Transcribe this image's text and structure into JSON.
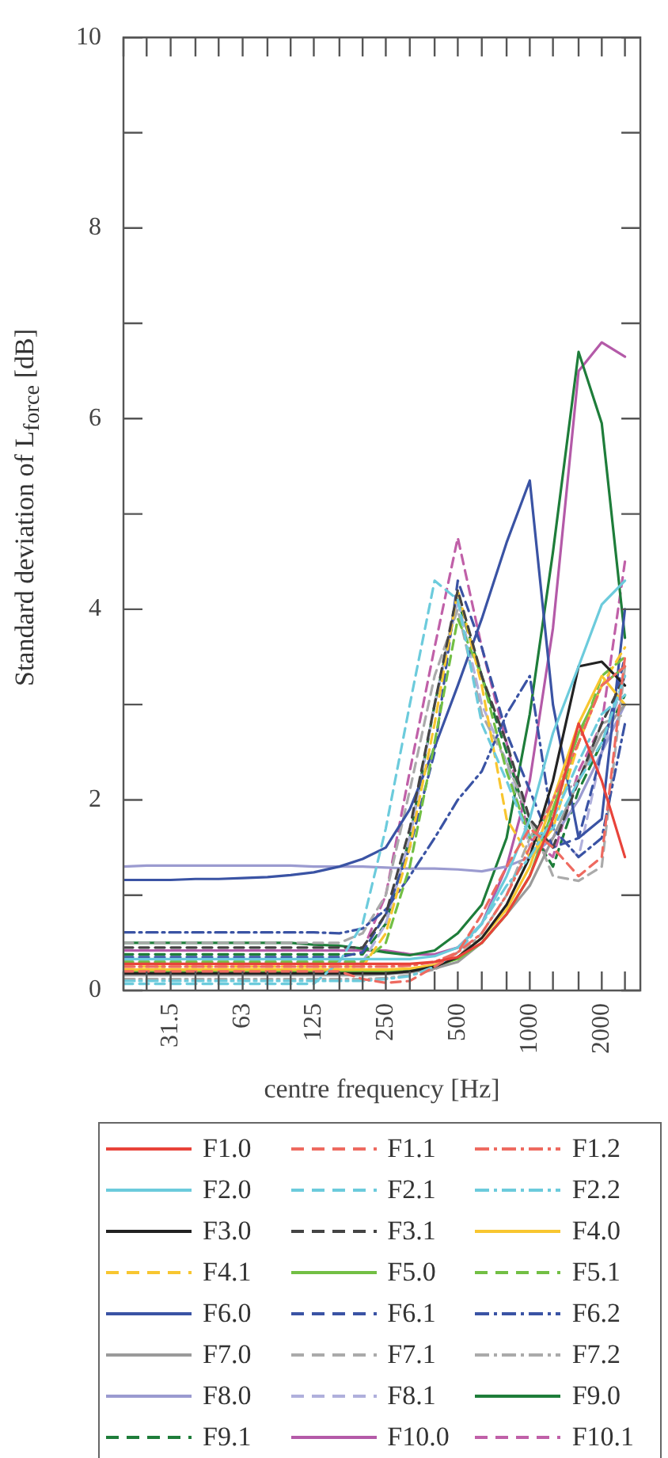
{
  "chart_data": {
    "type": "line",
    "xlabel": "centre frequency [Hz]",
    "ylabel": "Standard deviation of L$_{force}$ [dB]",
    "log": "x",
    "grid": false,
    "legend": "bottom",
    "marker": "none",
    "xlim": [
      20,
      2900
    ],
    "ylim": [
      0,
      10
    ],
    "xticks": [
      {
        "value": 20,
        "label": null
      },
      {
        "value": 25,
        "label": null
      },
      31.5,
      {
        "value": 40,
        "label": null
      },
      {
        "value": 50,
        "label": null
      },
      63,
      {
        "value": 80,
        "label": null
      },
      {
        "value": 100,
        "label": null
      },
      125,
      {
        "value": 160,
        "label": null
      },
      {
        "value": 200,
        "label": null
      },
      250,
      {
        "value": 315,
        "label": null
      },
      {
        "value": 400,
        "label": null
      },
      500,
      {
        "value": 630,
        "label": null
      },
      {
        "value": 800,
        "label": null
      },
      1000,
      {
        "value": 1250,
        "label": null
      },
      {
        "value": 1600,
        "label": null
      },
      2000,
      {
        "value": 2500,
        "label": null
      }
    ],
    "yticks": [
      0,
      {
        "value": 1,
        "label": null
      },
      2,
      {
        "value": 3,
        "label": null
      },
      4,
      {
        "value": 5,
        "label": null
      },
      6,
      {
        "value": 7,
        "label": null
      },
      8,
      {
        "value": 9,
        "label": null
      },
      10
    ],
    "x": [
      20,
      25,
      31.5,
      40,
      50,
      63,
      80,
      100,
      125,
      160,
      200,
      250,
      315,
      400,
      500,
      630,
      800,
      1000,
      1250,
      1600,
      2000,
      2500
    ],
    "series": [
      {
        "name": "F1.0",
        "color": "#e8433a",
        "line_style": "solid",
        "values": [
          0.28,
          0.28,
          0.28,
          0.28,
          0.28,
          0.28,
          0.28,
          0.28,
          0.28,
          0.28,
          0.28,
          0.28,
          0.28,
          0.3,
          0.35,
          0.5,
          0.8,
          1.2,
          1.8,
          2.8,
          2.2,
          1.4
        ]
      },
      {
        "name": "F1.1",
        "color": "#ee6a60",
        "line_style": "dashed",
        "values": [
          0.2,
          0.2,
          0.2,
          0.2,
          0.2,
          0.2,
          0.2,
          0.2,
          0.2,
          0.2,
          0.12,
          0.08,
          0.1,
          0.25,
          0.4,
          0.8,
          1.3,
          1.7,
          1.5,
          1.2,
          1.4,
          3.5
        ]
      },
      {
        "name": "F1.2",
        "color": "#ee6a60",
        "line_style": "dashdot",
        "values": [
          0.25,
          0.25,
          0.25,
          0.25,
          0.25,
          0.25,
          0.25,
          0.25,
          0.25,
          0.25,
          0.25,
          0.25,
          0.26,
          0.3,
          0.4,
          0.6,
          1.0,
          1.5,
          2.0,
          2.6,
          3.2,
          3.4
        ]
      },
      {
        "name": "F2.0",
        "color": "#6ccbdc",
        "line_style": "solid",
        "values": [
          0.33,
          0.33,
          0.33,
          0.33,
          0.33,
          0.33,
          0.33,
          0.33,
          0.33,
          0.33,
          0.33,
          0.33,
          0.33,
          0.36,
          0.45,
          0.7,
          1.2,
          1.8,
          2.7,
          3.4,
          4.05,
          4.3
        ]
      },
      {
        "name": "F2.1",
        "color": "#6ccbdc",
        "line_style": "dashed",
        "values": [
          0.07,
          0.07,
          0.07,
          0.07,
          0.07,
          0.07,
          0.07,
          0.07,
          0.07,
          0.3,
          0.7,
          1.7,
          3.0,
          4.3,
          4.1,
          2.8,
          2.2,
          1.6,
          1.7,
          2.2,
          2.6,
          3.3
        ]
      },
      {
        "name": "F2.2",
        "color": "#6ccbdc",
        "line_style": "dashdot",
        "values": [
          0.1,
          0.1,
          0.1,
          0.1,
          0.1,
          0.1,
          0.1,
          0.1,
          0.1,
          0.1,
          0.1,
          0.12,
          0.15,
          0.25,
          0.4,
          0.7,
          1.1,
          1.4,
          1.8,
          2.4,
          2.9,
          3.1
        ]
      },
      {
        "name": "F3.0",
        "color": "#222222",
        "line_style": "solid",
        "values": [
          0.18,
          0.18,
          0.18,
          0.18,
          0.18,
          0.18,
          0.18,
          0.18,
          0.18,
          0.18,
          0.18,
          0.18,
          0.2,
          0.25,
          0.35,
          0.55,
          0.9,
          1.4,
          2.2,
          3.4,
          3.45,
          3.2
        ]
      },
      {
        "name": "F3.1",
        "color": "#444444",
        "line_style": "dashed",
        "values": [
          0.45,
          0.45,
          0.45,
          0.45,
          0.45,
          0.45,
          0.45,
          0.45,
          0.45,
          0.45,
          0.45,
          0.8,
          1.7,
          3.0,
          4.2,
          3.3,
          2.6,
          1.8,
          1.5,
          2.2,
          2.8,
          3.3
        ]
      },
      {
        "name": "F4.0",
        "color": "#f8c630",
        "line_style": "solid",
        "values": [
          0.22,
          0.22,
          0.22,
          0.22,
          0.22,
          0.22,
          0.22,
          0.22,
          0.22,
          0.22,
          0.22,
          0.22,
          0.23,
          0.27,
          0.35,
          0.55,
          0.85,
          1.3,
          2.0,
          2.8,
          3.3,
          3.0
        ]
      },
      {
        "name": "F4.1",
        "color": "#f8c630",
        "line_style": "dashed",
        "values": [
          0.25,
          0.25,
          0.25,
          0.25,
          0.25,
          0.25,
          0.25,
          0.25,
          0.25,
          0.25,
          0.25,
          0.6,
          1.5,
          2.8,
          4.2,
          3.2,
          1.8,
          1.4,
          1.7,
          2.6,
          3.2,
          3.6
        ]
      },
      {
        "name": "F5.0",
        "color": "#72bf44",
        "line_style": "solid",
        "values": [
          0.2,
          0.2,
          0.2,
          0.2,
          0.2,
          0.2,
          0.2,
          0.2,
          0.2,
          0.2,
          0.2,
          0.2,
          0.22,
          0.26,
          0.33,
          0.5,
          0.8,
          1.2,
          1.9,
          2.7,
          3.2,
          3.4
        ]
      },
      {
        "name": "F5.1",
        "color": "#72bf44",
        "line_style": "dashed",
        "values": [
          0.3,
          0.3,
          0.3,
          0.3,
          0.3,
          0.3,
          0.3,
          0.3,
          0.3,
          0.3,
          0.3,
          0.5,
          1.3,
          2.6,
          3.9,
          3.3,
          2.3,
          1.6,
          1.9,
          2.6,
          3.3,
          3.5
        ]
      },
      {
        "name": "F6.0",
        "color": "#3a53a4",
        "line_style": "solid",
        "values": [
          1.16,
          1.16,
          1.16,
          1.17,
          1.17,
          1.18,
          1.19,
          1.21,
          1.24,
          1.3,
          1.38,
          1.5,
          1.9,
          2.55,
          3.2,
          3.9,
          4.7,
          5.35,
          3.0,
          1.6,
          1.8,
          4.0
        ]
      },
      {
        "name": "F6.1",
        "color": "#3a53a4",
        "line_style": "dashed",
        "values": [
          0.35,
          0.35,
          0.35,
          0.35,
          0.35,
          0.35,
          0.35,
          0.35,
          0.35,
          0.35,
          0.4,
          0.8,
          1.5,
          2.5,
          4.3,
          3.6,
          2.7,
          2.1,
          1.5,
          1.6,
          2.5,
          3.5
        ]
      },
      {
        "name": "F6.2",
        "color": "#3a53a4",
        "line_style": "dashdot",
        "values": [
          0.61,
          0.61,
          0.61,
          0.61,
          0.61,
          0.61,
          0.61,
          0.61,
          0.61,
          0.6,
          0.65,
          0.85,
          1.2,
          1.6,
          2.0,
          2.3,
          2.9,
          3.3,
          1.7,
          1.4,
          1.6,
          2.8
        ]
      },
      {
        "name": "F7.0",
        "color": "#9a9a9a",
        "line_style": "solid",
        "values": [
          0.16,
          0.16,
          0.16,
          0.16,
          0.16,
          0.16,
          0.16,
          0.16,
          0.16,
          0.16,
          0.16,
          0.17,
          0.19,
          0.23,
          0.3,
          0.5,
          0.8,
          1.1,
          1.6,
          2.2,
          2.7,
          3.0
        ]
      },
      {
        "name": "F7.1",
        "color": "#aaaaaa",
        "line_style": "dashed",
        "values": [
          0.5,
          0.5,
          0.5,
          0.5,
          0.5,
          0.5,
          0.5,
          0.5,
          0.5,
          0.5,
          0.6,
          1.0,
          2.1,
          3.3,
          4.0,
          2.9,
          2.4,
          1.8,
          1.2,
          1.15,
          1.3,
          3.4
        ]
      },
      {
        "name": "F7.2",
        "color": "#aaaaaa",
        "line_style": "dashdot",
        "values": [
          0.12,
          0.12,
          0.12,
          0.12,
          0.12,
          0.12,
          0.12,
          0.12,
          0.12,
          0.12,
          0.12,
          0.13,
          0.16,
          0.22,
          0.35,
          0.6,
          1.0,
          1.6,
          2.0,
          2.2,
          2.8,
          2.9
        ]
      },
      {
        "name": "F8.0",
        "color": "#9b9bd0",
        "line_style": "solid",
        "values": [
          1.3,
          1.31,
          1.31,
          1.31,
          1.31,
          1.31,
          1.31,
          1.31,
          1.3,
          1.3,
          1.3,
          1.29,
          1.28,
          1.28,
          1.27,
          1.25,
          1.3,
          1.4,
          1.6,
          2.0,
          2.5,
          3.0
        ]
      },
      {
        "name": "F8.1",
        "color": "#b0b0dc",
        "line_style": "dashed",
        "values": [
          0.3,
          0.3,
          0.3,
          0.3,
          0.3,
          0.3,
          0.3,
          0.3,
          0.3,
          0.3,
          0.3,
          0.7,
          1.6,
          3.0,
          4.1,
          3.0,
          2.4,
          1.5,
          1.7,
          1.4,
          2.5,
          3.3
        ]
      },
      {
        "name": "F9.0",
        "color": "#1e7d3a",
        "line_style": "solid",
        "values": [
          0.5,
          0.5,
          0.5,
          0.5,
          0.5,
          0.5,
          0.5,
          0.5,
          0.48,
          0.47,
          0.44,
          0.4,
          0.37,
          0.42,
          0.6,
          0.9,
          1.6,
          2.9,
          4.6,
          6.7,
          5.95,
          3.7
        ]
      },
      {
        "name": "F9.1",
        "color": "#1e7d3a",
        "line_style": "dashed",
        "values": [
          0.38,
          0.38,
          0.38,
          0.38,
          0.38,
          0.38,
          0.38,
          0.38,
          0.38,
          0.38,
          0.38,
          0.7,
          1.6,
          3.0,
          4.1,
          3.3,
          2.5,
          1.7,
          1.3,
          2.1,
          2.6,
          3.1
        ]
      },
      {
        "name": "F10.0",
        "color": "#b45aa8",
        "line_style": "solid",
        "values": [
          0.42,
          0.42,
          0.42,
          0.42,
          0.42,
          0.42,
          0.42,
          0.42,
          0.42,
          0.42,
          0.42,
          0.42,
          0.38,
          0.38,
          0.45,
          0.7,
          1.3,
          2.2,
          3.8,
          6.5,
          6.8,
          6.65
        ]
      },
      {
        "name": "F10.1",
        "color": "#c060a8",
        "line_style": "dashed",
        "values": [
          0.42,
          0.42,
          0.42,
          0.42,
          0.42,
          0.42,
          0.42,
          0.42,
          0.42,
          0.42,
          0.42,
          1.0,
          2.3,
          3.6,
          4.75,
          3.6,
          2.6,
          1.6,
          1.4,
          2.3,
          2.8,
          4.5
        ]
      }
    ]
  }
}
